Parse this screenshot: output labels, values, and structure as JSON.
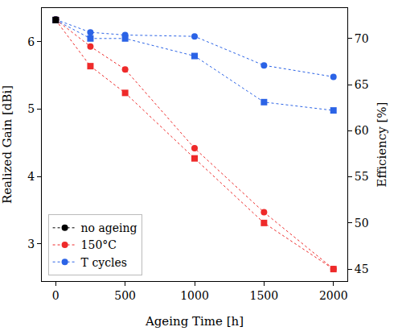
{
  "chart_data": {
    "type": "line",
    "x_label": "Ageing Time [h]",
    "y_label": "Realized Gain [dBi]",
    "y2_label": "Efficiency [%]",
    "x": [
      0,
      250,
      500,
      1000,
      1500,
      2000
    ],
    "xlim": [
      -100,
      2100
    ],
    "xticks": [
      0,
      500,
      1000,
      1500,
      2000
    ],
    "ylim": [
      2.45,
      6.5
    ],
    "yticks": [
      3,
      4,
      5,
      6
    ],
    "y2lim": [
      43.7,
      73.3
    ],
    "y2ticks": [
      45,
      50,
      55,
      60,
      65,
      70
    ],
    "grid": false,
    "legend": "lower left",
    "series": [
      {
        "name": "no ageing",
        "color": "#000000",
        "marker": "circle",
        "line_style": "dotted",
        "values": [
          6.33,
          null,
          null,
          null,
          null,
          null
        ]
      },
      {
        "name": "150°C",
        "color": "#ee2a2a",
        "marker": "circle",
        "line_style": "dotted",
        "values": [
          6.33,
          5.93,
          5.59,
          4.42,
          3.47,
          2.63
        ]
      },
      {
        "name": "T cycles",
        "color": "#2b63e6",
        "marker": "circle",
        "line_style": "dotted",
        "values": [
          6.33,
          6.14,
          6.1,
          6.08,
          5.65,
          5.48
        ]
      },
      {
        "name": "no ageing",
        "color": "#000000",
        "marker": "square",
        "line_style": "dotted",
        "axis": "y2",
        "values": [
          72.0,
          null,
          null,
          null,
          null,
          null
        ]
      },
      {
        "name": "150°C",
        "color": "#ee2a2a",
        "marker": "square",
        "line_style": "dotted",
        "axis": "y2",
        "values": [
          72.0,
          67.0,
          64.1,
          57.0,
          50.0,
          45.0
        ]
      },
      {
        "name": "T cycles",
        "color": "#2b63e6",
        "marker": "square",
        "line_style": "dotted",
        "axis": "y2",
        "values": [
          72.0,
          70.0,
          70.0,
          68.1,
          63.1,
          62.2
        ]
      }
    ]
  }
}
